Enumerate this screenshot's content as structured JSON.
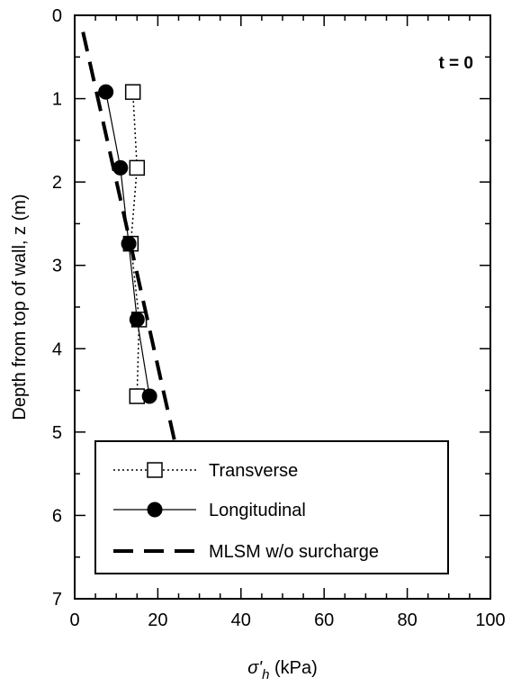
{
  "chart_data": {
    "type": "scatter",
    "annotation": "t = 0",
    "xlabel": {
      "symbol": "σ'",
      "subscript": "h",
      "unit": " (kPa)"
    },
    "ylabel": "Depth from top of wall, z (m)",
    "xlim": [
      0,
      100
    ],
    "ylim": [
      0,
      7
    ],
    "y_inverted": true,
    "x_axis_position": "bottom",
    "grid": false,
    "x_ticks": [
      0,
      20,
      40,
      60,
      80,
      100
    ],
    "y_ticks": [
      0,
      1,
      2,
      3,
      4,
      5,
      6,
      7
    ],
    "legend_position": "bottom-center",
    "series": [
      {
        "name": "Transverse",
        "marker": "open-square",
        "line": "dotted",
        "color": "#000000",
        "points": [
          {
            "x": 14.0,
            "z": 0.92
          },
          {
            "x": 15.0,
            "z": 1.83
          },
          {
            "x": 13.5,
            "z": 2.74
          },
          {
            "x": 15.5,
            "z": 3.65
          },
          {
            "x": 15.0,
            "z": 4.57
          }
        ]
      },
      {
        "name": "Longitudinal",
        "marker": "filled-circle",
        "line": "solid",
        "color": "#000000",
        "points": [
          {
            "x": 7.5,
            "z": 0.92
          },
          {
            "x": 11.0,
            "z": 1.83
          },
          {
            "x": 13.0,
            "z": 2.74
          },
          {
            "x": 15.0,
            "z": 3.65
          },
          {
            "x": 18.0,
            "z": 4.57
          }
        ]
      },
      {
        "name": "MLSM w/o surcharge",
        "marker": "none",
        "line": "dashed",
        "color": "#000000",
        "points": [
          {
            "x": 2.0,
            "z": 0.2
          },
          {
            "x": 24.0,
            "z": 5.1
          }
        ]
      }
    ]
  }
}
